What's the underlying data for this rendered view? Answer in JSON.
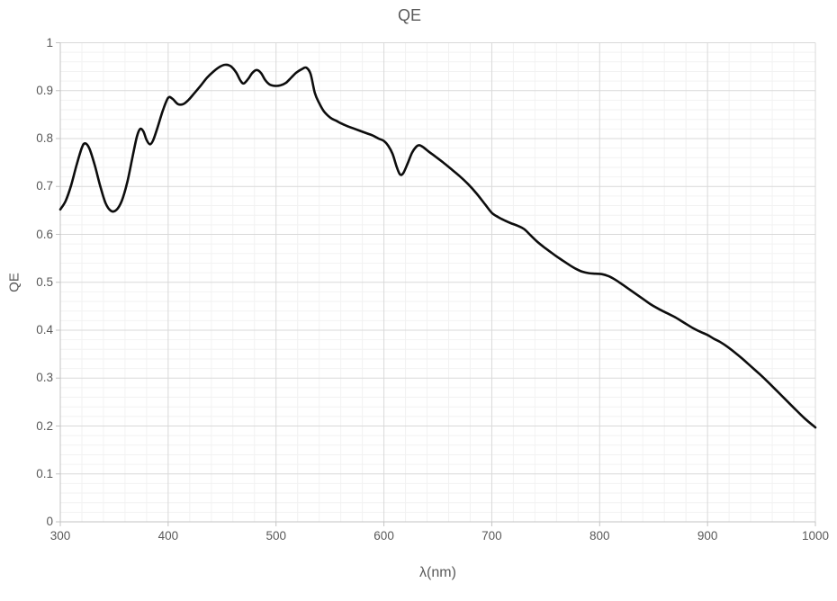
{
  "chart_data": {
    "type": "line",
    "title": "QE",
    "xlabel": "λ(nm)",
    "ylabel": "QE",
    "xlim": [
      300,
      1000
    ],
    "ylim": [
      0,
      1
    ],
    "x_major_ticks": [
      300,
      400,
      500,
      600,
      700,
      800,
      900,
      1000
    ],
    "y_major_ticks": [
      0,
      0.1,
      0.2,
      0.3,
      0.4,
      0.5,
      0.6,
      0.7,
      0.8,
      0.9,
      1
    ],
    "x_minor_step": 20,
    "y_minor_step": 0.02,
    "grid": {
      "major": true,
      "minor": true
    },
    "legend": "none",
    "series": [
      {
        "name": "QE",
        "smooth": true,
        "points": [
          [
            300,
            0.652
          ],
          [
            305,
            0.67
          ],
          [
            310,
            0.702
          ],
          [
            315,
            0.744
          ],
          [
            320,
            0.781
          ],
          [
            323,
            0.79
          ],
          [
            327,
            0.779
          ],
          [
            332,
            0.744
          ],
          [
            337,
            0.701
          ],
          [
            342,
            0.665
          ],
          [
            347,
            0.649
          ],
          [
            352,
            0.651
          ],
          [
            357,
            0.67
          ],
          [
            362,
            0.708
          ],
          [
            367,
            0.762
          ],
          [
            371,
            0.804
          ],
          [
            374,
            0.82
          ],
          [
            377,
            0.815
          ],
          [
            380,
            0.797
          ],
          [
            383,
            0.788
          ],
          [
            386,
            0.796
          ],
          [
            390,
            0.822
          ],
          [
            395,
            0.858
          ],
          [
            400,
            0.885
          ],
          [
            404,
            0.883
          ],
          [
            409,
            0.872
          ],
          [
            414,
            0.872
          ],
          [
            419,
            0.881
          ],
          [
            424,
            0.894
          ],
          [
            430,
            0.91
          ],
          [
            436,
            0.927
          ],
          [
            442,
            0.94
          ],
          [
            448,
            0.95
          ],
          [
            453,
            0.954
          ],
          [
            458,
            0.951
          ],
          [
            463,
            0.938
          ],
          [
            467,
            0.921
          ],
          [
            470,
            0.915
          ],
          [
            474,
            0.924
          ],
          [
            478,
            0.937
          ],
          [
            482,
            0.943
          ],
          [
            486,
            0.937
          ],
          [
            490,
            0.922
          ],
          [
            494,
            0.913
          ],
          [
            499,
            0.91
          ],
          [
            504,
            0.911
          ],
          [
            509,
            0.916
          ],
          [
            514,
            0.927
          ],
          [
            519,
            0.938
          ],
          [
            524,
            0.945
          ],
          [
            528,
            0.948
          ],
          [
            532,
            0.935
          ],
          [
            536,
            0.895
          ],
          [
            540,
            0.874
          ],
          [
            544,
            0.858
          ],
          [
            548,
            0.848
          ],
          [
            552,
            0.841
          ],
          [
            556,
            0.837
          ],
          [
            560,
            0.832
          ],
          [
            566,
            0.826
          ],
          [
            572,
            0.821
          ],
          [
            578,
            0.816
          ],
          [
            584,
            0.811
          ],
          [
            590,
            0.806
          ],
          [
            595,
            0.8
          ],
          [
            600,
            0.795
          ],
          [
            604,
            0.785
          ],
          [
            608,
            0.768
          ],
          [
            612,
            0.74
          ],
          [
            615,
            0.725
          ],
          [
            618,
            0.728
          ],
          [
            622,
            0.748
          ],
          [
            626,
            0.77
          ],
          [
            630,
            0.783
          ],
          [
            633,
            0.786
          ],
          [
            637,
            0.781
          ],
          [
            642,
            0.772
          ],
          [
            648,
            0.762
          ],
          [
            655,
            0.75
          ],
          [
            662,
            0.737
          ],
          [
            670,
            0.722
          ],
          [
            678,
            0.705
          ],
          [
            686,
            0.685
          ],
          [
            694,
            0.662
          ],
          [
            700,
            0.645
          ],
          [
            706,
            0.636
          ],
          [
            712,
            0.629
          ],
          [
            718,
            0.623
          ],
          [
            724,
            0.618
          ],
          [
            730,
            0.611
          ],
          [
            736,
            0.598
          ],
          [
            742,
            0.585
          ],
          [
            748,
            0.574
          ],
          [
            754,
            0.564
          ],
          [
            760,
            0.554
          ],
          [
            766,
            0.545
          ],
          [
            772,
            0.536
          ],
          [
            778,
            0.528
          ],
          [
            784,
            0.522
          ],
          [
            790,
            0.519
          ],
          [
            796,
            0.518
          ],
          [
            802,
            0.517
          ],
          [
            808,
            0.513
          ],
          [
            814,
            0.506
          ],
          [
            820,
            0.497
          ],
          [
            827,
            0.486
          ],
          [
            834,
            0.475
          ],
          [
            841,
            0.464
          ],
          [
            848,
            0.453
          ],
          [
            855,
            0.444
          ],
          [
            862,
            0.436
          ],
          [
            870,
            0.427
          ],
          [
            878,
            0.416
          ],
          [
            886,
            0.405
          ],
          [
            893,
            0.397
          ],
          [
            900,
            0.39
          ],
          [
            906,
            0.382
          ],
          [
            912,
            0.375
          ],
          [
            918,
            0.366
          ],
          [
            925,
            0.354
          ],
          [
            932,
            0.341
          ],
          [
            940,
            0.325
          ],
          [
            948,
            0.309
          ],
          [
            956,
            0.292
          ],
          [
            964,
            0.274
          ],
          [
            972,
            0.256
          ],
          [
            980,
            0.238
          ],
          [
            990,
            0.216
          ],
          [
            1000,
            0.197
          ]
        ]
      }
    ]
  },
  "style": {
    "background": "#ffffff",
    "series_color": "#0d0d0d",
    "series_width": 2.6,
    "major_grid_color": "#d9d9d9",
    "minor_grid_color": "#f2f2f2",
    "axis_color": "#c3c3c3",
    "text_color": "#595959"
  }
}
